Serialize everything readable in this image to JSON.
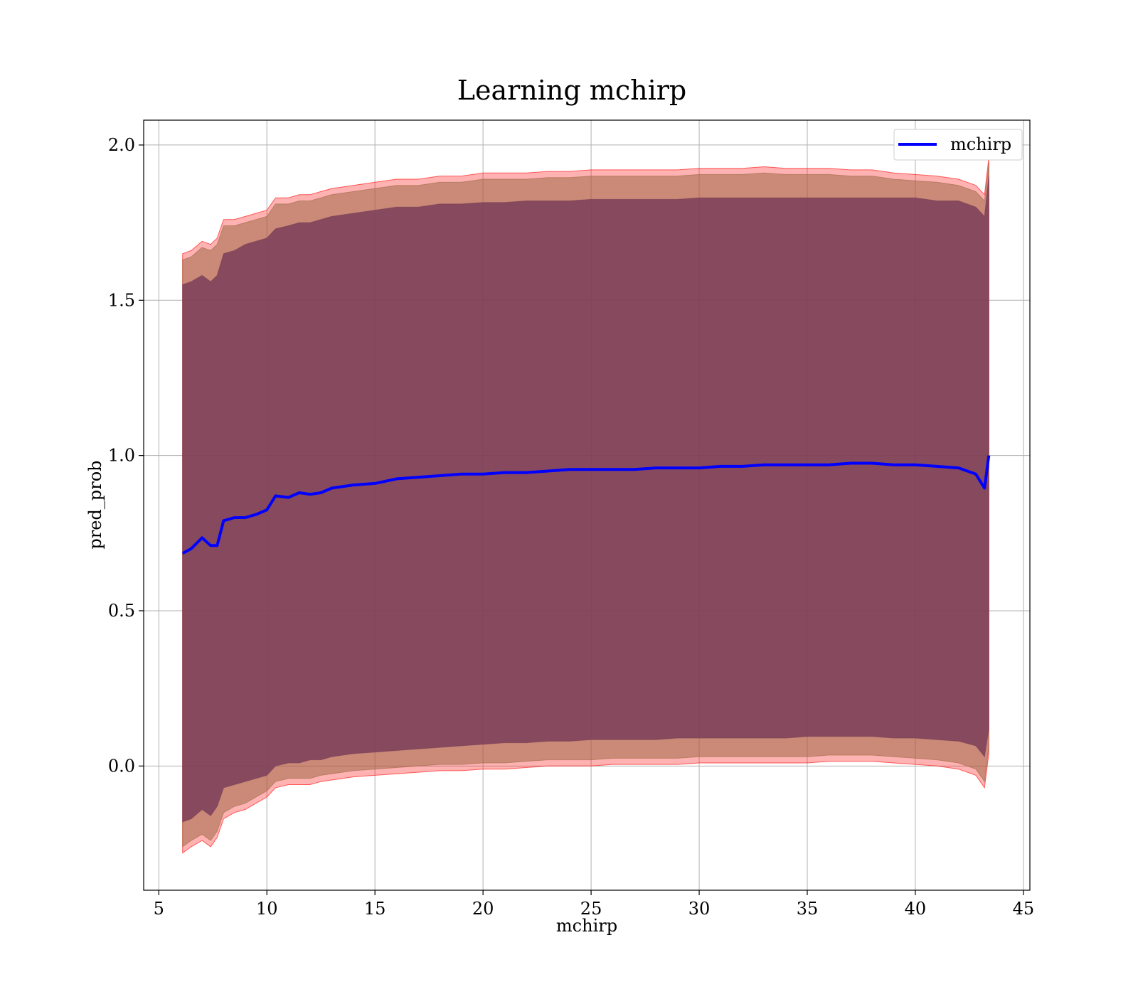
{
  "chart_data": {
    "type": "line",
    "title": "Learning mchirp",
    "xlabel": "mchirp",
    "ylabel": "pred_prob",
    "xlim": [
      4.3,
      45.3
    ],
    "ylim": [
      -0.4,
      2.08
    ],
    "grid": true,
    "legend_position": "top-right",
    "x_ticks": [
      5,
      10,
      15,
      20,
      25,
      30,
      35,
      40,
      45
    ],
    "x_tick_labels": [
      "5",
      "10",
      "15",
      "20",
      "25",
      "30",
      "35",
      "40",
      "45"
    ],
    "y_ticks": [
      0.0,
      0.5,
      1.0,
      1.5,
      2.0
    ],
    "y_tick_labels": [
      "0.0",
      "0.5",
      "1.0",
      "1.5",
      "2.0"
    ],
    "series": [
      {
        "name": "mchirp",
        "color": "#0000ff",
        "x": [
          6.1,
          6.5,
          7.0,
          7.4,
          7.7,
          8.0,
          8.5,
          9.0,
          9.5,
          10.0,
          10.4,
          11.0,
          11.5,
          12.0,
          12.5,
          13.0,
          14.0,
          15.0,
          16.0,
          17.0,
          18.0,
          19.0,
          20.0,
          21.0,
          22.0,
          23.0,
          24.0,
          25.0,
          26.0,
          27.0,
          28.0,
          29.0,
          30.0,
          31.0,
          32.0,
          33.0,
          34.0,
          35.0,
          36.0,
          37.0,
          38.0,
          39.0,
          40.0,
          41.0,
          42.0,
          42.8,
          43.2,
          43.4
        ],
        "y": [
          0.685,
          0.7,
          0.735,
          0.71,
          0.71,
          0.79,
          0.8,
          0.8,
          0.81,
          0.825,
          0.87,
          0.865,
          0.88,
          0.875,
          0.88,
          0.895,
          0.905,
          0.91,
          0.925,
          0.93,
          0.935,
          0.94,
          0.94,
          0.945,
          0.945,
          0.95,
          0.955,
          0.955,
          0.955,
          0.955,
          0.96,
          0.96,
          0.96,
          0.965,
          0.965,
          0.97,
          0.97,
          0.97,
          0.97,
          0.975,
          0.975,
          0.97,
          0.97,
          0.965,
          0.96,
          0.94,
          0.895,
          1.0
        ]
      }
    ],
    "bands": [
      {
        "color": "#ff0000",
        "x": [
          6.1,
          6.5,
          7.0,
          7.4,
          7.7,
          8.0,
          8.5,
          9.0,
          9.5,
          10.0,
          10.4,
          11.0,
          11.5,
          12.0,
          12.5,
          13.0,
          14.0,
          15.0,
          16.0,
          17.0,
          18.0,
          19.0,
          20.0,
          21.0,
          22.0,
          23.0,
          24.0,
          25.0,
          26.0,
          27.0,
          28.0,
          29.0,
          30.0,
          31.0,
          32.0,
          33.0,
          34.0,
          35.0,
          36.0,
          37.0,
          38.0,
          39.0,
          40.0,
          41.0,
          42.0,
          42.8,
          43.2,
          43.4
        ],
        "lower": [
          -0.28,
          -0.26,
          -0.24,
          -0.26,
          -0.23,
          -0.17,
          -0.15,
          -0.14,
          -0.12,
          -0.1,
          -0.07,
          -0.06,
          -0.06,
          -0.06,
          -0.05,
          -0.045,
          -0.035,
          -0.03,
          -0.025,
          -0.02,
          -0.015,
          -0.015,
          -0.01,
          -0.01,
          -0.005,
          0.0,
          0.0,
          0.0,
          0.005,
          0.005,
          0.005,
          0.005,
          0.01,
          0.01,
          0.01,
          0.01,
          0.01,
          0.01,
          0.015,
          0.015,
          0.015,
          0.01,
          0.005,
          0.0,
          -0.01,
          -0.03,
          -0.07,
          0.04
        ],
        "upper": [
          1.65,
          1.66,
          1.69,
          1.68,
          1.7,
          1.76,
          1.76,
          1.77,
          1.78,
          1.79,
          1.83,
          1.83,
          1.84,
          1.84,
          1.85,
          1.86,
          1.87,
          1.88,
          1.89,
          1.89,
          1.9,
          1.9,
          1.91,
          1.91,
          1.91,
          1.915,
          1.915,
          1.92,
          1.92,
          1.92,
          1.92,
          1.92,
          1.925,
          1.925,
          1.925,
          1.93,
          1.925,
          1.925,
          1.925,
          1.92,
          1.92,
          1.91,
          1.905,
          1.9,
          1.89,
          1.87,
          1.84,
          1.96
        ]
      },
      {
        "color": "#9e6a47",
        "x": [
          6.1,
          6.5,
          7.0,
          7.4,
          7.7,
          8.0,
          8.5,
          9.0,
          9.5,
          10.0,
          10.4,
          11.0,
          11.5,
          12.0,
          12.5,
          13.0,
          14.0,
          15.0,
          16.0,
          17.0,
          18.0,
          19.0,
          20.0,
          21.0,
          22.0,
          23.0,
          24.0,
          25.0,
          26.0,
          27.0,
          28.0,
          29.0,
          30.0,
          31.0,
          32.0,
          33.0,
          34.0,
          35.0,
          36.0,
          37.0,
          38.0,
          39.0,
          40.0,
          41.0,
          42.0,
          42.8,
          43.2,
          43.4
        ],
        "lower": [
          -0.26,
          -0.24,
          -0.22,
          -0.24,
          -0.21,
          -0.15,
          -0.13,
          -0.12,
          -0.1,
          -0.08,
          -0.05,
          -0.04,
          -0.04,
          -0.04,
          -0.03,
          -0.025,
          -0.015,
          -0.01,
          -0.005,
          0.0,
          0.005,
          0.005,
          0.01,
          0.01,
          0.015,
          0.02,
          0.02,
          0.02,
          0.025,
          0.025,
          0.025,
          0.025,
          0.03,
          0.03,
          0.03,
          0.03,
          0.03,
          0.03,
          0.035,
          0.035,
          0.035,
          0.03,
          0.025,
          0.02,
          0.01,
          -0.01,
          -0.05,
          0.06
        ],
        "upper": [
          1.63,
          1.64,
          1.67,
          1.66,
          1.68,
          1.74,
          1.74,
          1.75,
          1.76,
          1.77,
          1.81,
          1.81,
          1.82,
          1.82,
          1.83,
          1.84,
          1.85,
          1.86,
          1.87,
          1.87,
          1.88,
          1.88,
          1.89,
          1.89,
          1.89,
          1.895,
          1.895,
          1.9,
          1.9,
          1.9,
          1.9,
          1.9,
          1.905,
          1.905,
          1.905,
          1.91,
          1.905,
          1.905,
          1.905,
          1.9,
          1.9,
          1.89,
          1.885,
          1.88,
          1.87,
          1.85,
          1.82,
          1.94
        ]
      },
      {
        "color": "#7a3d58",
        "x": [
          6.1,
          6.5,
          7.0,
          7.4,
          7.7,
          8.0,
          8.5,
          9.0,
          9.5,
          10.0,
          10.4,
          11.0,
          11.5,
          12.0,
          12.5,
          13.0,
          14.0,
          15.0,
          16.0,
          17.0,
          18.0,
          19.0,
          20.0,
          21.0,
          22.0,
          23.0,
          24.0,
          25.0,
          26.0,
          27.0,
          28.0,
          29.0,
          30.0,
          31.0,
          32.0,
          33.0,
          34.0,
          35.0,
          36.0,
          37.0,
          38.0,
          39.0,
          40.0,
          41.0,
          42.0,
          42.8,
          43.2,
          43.4
        ],
        "lower": [
          -0.18,
          -0.17,
          -0.14,
          -0.16,
          -0.13,
          -0.07,
          -0.06,
          -0.05,
          -0.04,
          -0.03,
          0.0,
          0.01,
          0.01,
          0.02,
          0.02,
          0.03,
          0.04,
          0.045,
          0.05,
          0.055,
          0.06,
          0.065,
          0.07,
          0.075,
          0.075,
          0.08,
          0.08,
          0.085,
          0.085,
          0.085,
          0.085,
          0.09,
          0.09,
          0.09,
          0.09,
          0.09,
          0.09,
          0.095,
          0.095,
          0.095,
          0.095,
          0.09,
          0.09,
          0.085,
          0.08,
          0.065,
          0.03,
          0.12
        ],
        "upper": [
          1.55,
          1.56,
          1.58,
          1.56,
          1.58,
          1.65,
          1.66,
          1.68,
          1.69,
          1.7,
          1.73,
          1.74,
          1.75,
          1.75,
          1.76,
          1.77,
          1.78,
          1.79,
          1.8,
          1.8,
          1.81,
          1.81,
          1.815,
          1.815,
          1.82,
          1.82,
          1.82,
          1.825,
          1.825,
          1.825,
          1.825,
          1.825,
          1.83,
          1.83,
          1.83,
          1.83,
          1.83,
          1.83,
          1.83,
          1.83,
          1.83,
          1.83,
          1.83,
          1.82,
          1.82,
          1.8,
          1.77,
          1.9
        ]
      }
    ]
  }
}
